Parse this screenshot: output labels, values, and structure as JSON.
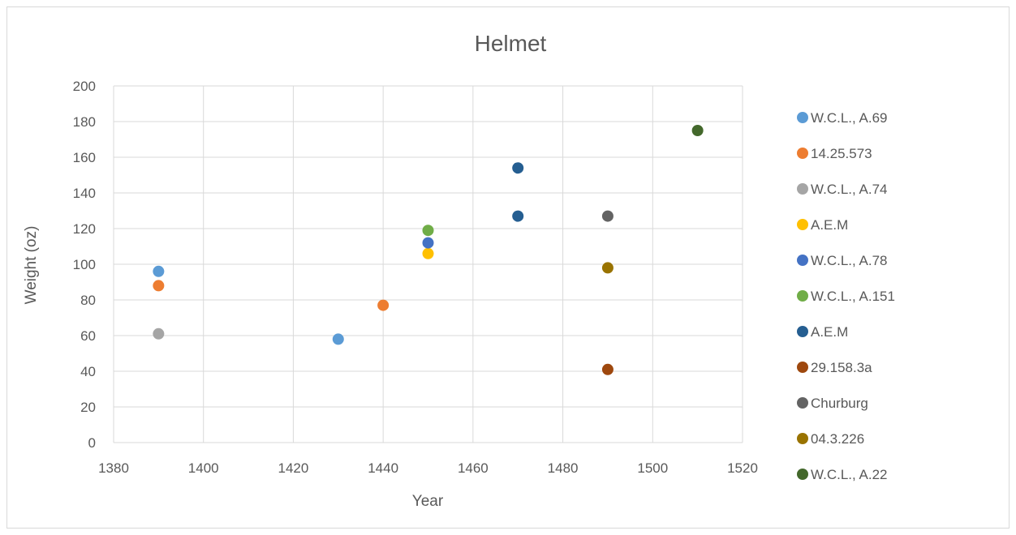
{
  "chart_data": {
    "type": "scatter",
    "title": "Helmet",
    "xlabel": "Year",
    "ylabel": "Weight (oz)",
    "xlim": [
      1380,
      1520
    ],
    "ylim": [
      0,
      200
    ],
    "x_ticks": [
      1380,
      1400,
      1420,
      1440,
      1460,
      1480,
      1500,
      1520
    ],
    "y_ticks": [
      0,
      20,
      40,
      60,
      80,
      100,
      120,
      140,
      160,
      180,
      200
    ],
    "grid": true,
    "legend_position": "right",
    "series": [
      {
        "name": "W.C.L., A.69",
        "color": "#5b9bd5",
        "points": [
          [
            1390,
            96
          ],
          [
            1430,
            58
          ]
        ]
      },
      {
        "name": "14.25.573",
        "color": "#ed7d31",
        "points": [
          [
            1390,
            88
          ],
          [
            1440,
            77
          ]
        ]
      },
      {
        "name": "W.C.L., A.74",
        "color": "#a5a5a5",
        "points": [
          [
            1390,
            61
          ]
        ]
      },
      {
        "name": "A.E.M",
        "color": "#ffc000",
        "points": [
          [
            1450,
            106
          ]
        ]
      },
      {
        "name": "W.C.L., A.78",
        "color": "#4472c4",
        "points": [
          [
            1450,
            112
          ]
        ]
      },
      {
        "name": "W.C.L., A.151",
        "color": "#70ad47",
        "points": [
          [
            1450,
            119
          ]
        ]
      },
      {
        "name": "A.E.M",
        "color": "#255e91",
        "points": [
          [
            1470,
            154
          ],
          [
            1470,
            127
          ]
        ]
      },
      {
        "name": "29.158.3a",
        "color": "#9e480e",
        "points": [
          [
            1490,
            41
          ]
        ]
      },
      {
        "name": "Churburg",
        "color": "#636363",
        "points": [
          [
            1490,
            127
          ]
        ]
      },
      {
        "name": "04.3.226",
        "color": "#997300",
        "points": [
          [
            1490,
            98
          ]
        ]
      },
      {
        "name": "W.C.L., A.22",
        "color": "#43682b",
        "points": [
          [
            1510,
            175
          ]
        ]
      }
    ]
  }
}
